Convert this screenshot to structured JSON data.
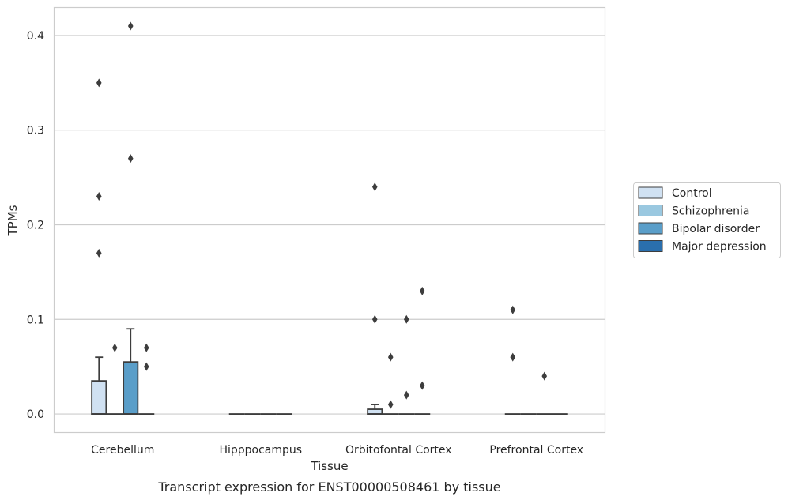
{
  "chart_data": {
    "type": "box",
    "caption": "Transcript expression for ENST00000508461 by tissue",
    "xlabel": "Tissue",
    "ylabel": "TPMs",
    "ylim": [
      -0.02,
      0.43
    ],
    "yticks": [
      0.0,
      0.1,
      0.2,
      0.3,
      0.4
    ],
    "ytick_labels": [
      "0.0",
      "0.1",
      "0.2",
      "0.3",
      "0.4"
    ],
    "grid": "horizontal",
    "legend_position": "right",
    "categories": [
      "Cerebellum",
      "Hipppocampus",
      "Orbitofontal Cortex",
      "Prefrontal Cortex"
    ],
    "series": [
      {
        "name": "Control",
        "color": "#d0e1f2",
        "boxes": [
          {
            "min": 0.0,
            "q1": 0.0,
            "median": 0.0,
            "q3": 0.035,
            "max": 0.06,
            "outliers": [
              0.17,
              0.23,
              0.35
            ]
          },
          {
            "min": 0.0,
            "q1": 0.0,
            "median": 0.0,
            "q3": 0.0,
            "max": 0.0,
            "outliers": []
          },
          {
            "min": 0.0,
            "q1": 0.0,
            "median": 0.0,
            "q3": 0.005,
            "max": 0.01,
            "outliers": [
              0.1,
              0.24
            ]
          },
          {
            "min": 0.0,
            "q1": 0.0,
            "median": 0.0,
            "q3": 0.0,
            "max": 0.0,
            "outliers": [
              0.06,
              0.11
            ]
          }
        ]
      },
      {
        "name": "Schizophrenia",
        "color": "#9ac8e0",
        "boxes": [
          {
            "min": 0.0,
            "q1": 0.0,
            "median": 0.0,
            "q3": 0.0,
            "max": 0.0,
            "outliers": [
              0.07
            ]
          },
          {
            "min": 0.0,
            "q1": 0.0,
            "median": 0.0,
            "q3": 0.0,
            "max": 0.0,
            "outliers": []
          },
          {
            "min": 0.0,
            "q1": 0.0,
            "median": 0.0,
            "q3": 0.0,
            "max": 0.0,
            "outliers": [
              0.01,
              0.06
            ]
          },
          {
            "min": 0.0,
            "q1": 0.0,
            "median": 0.0,
            "q3": 0.0,
            "max": 0.0,
            "outliers": []
          }
        ]
      },
      {
        "name": "Bipolar disorder",
        "color": "#5a9ec9",
        "boxes": [
          {
            "min": 0.0,
            "q1": 0.0,
            "median": 0.0,
            "q3": 0.055,
            "max": 0.09,
            "outliers": [
              0.27,
              0.41
            ]
          },
          {
            "min": 0.0,
            "q1": 0.0,
            "median": 0.0,
            "q3": 0.0,
            "max": 0.0,
            "outliers": []
          },
          {
            "min": 0.0,
            "q1": 0.0,
            "median": 0.0,
            "q3": 0.0,
            "max": 0.0,
            "outliers": [
              0.02,
              0.1
            ]
          },
          {
            "min": 0.0,
            "q1": 0.0,
            "median": 0.0,
            "q3": 0.0,
            "max": 0.0,
            "outliers": [
              0.04
            ]
          }
        ]
      },
      {
        "name": "Major depression",
        "color": "#2a6fad",
        "boxes": [
          {
            "min": 0.0,
            "q1": 0.0,
            "median": 0.0,
            "q3": 0.0,
            "max": 0.0,
            "outliers": [
              0.05,
              0.07
            ]
          },
          {
            "min": 0.0,
            "q1": 0.0,
            "median": 0.0,
            "q3": 0.0,
            "max": 0.0,
            "outliers": []
          },
          {
            "min": 0.0,
            "q1": 0.0,
            "median": 0.0,
            "q3": 0.0,
            "max": 0.0,
            "outliers": [
              0.03,
              0.13
            ]
          },
          {
            "min": 0.0,
            "q1": 0.0,
            "median": 0.0,
            "q3": 0.0,
            "max": 0.0,
            "outliers": []
          }
        ]
      }
    ]
  }
}
